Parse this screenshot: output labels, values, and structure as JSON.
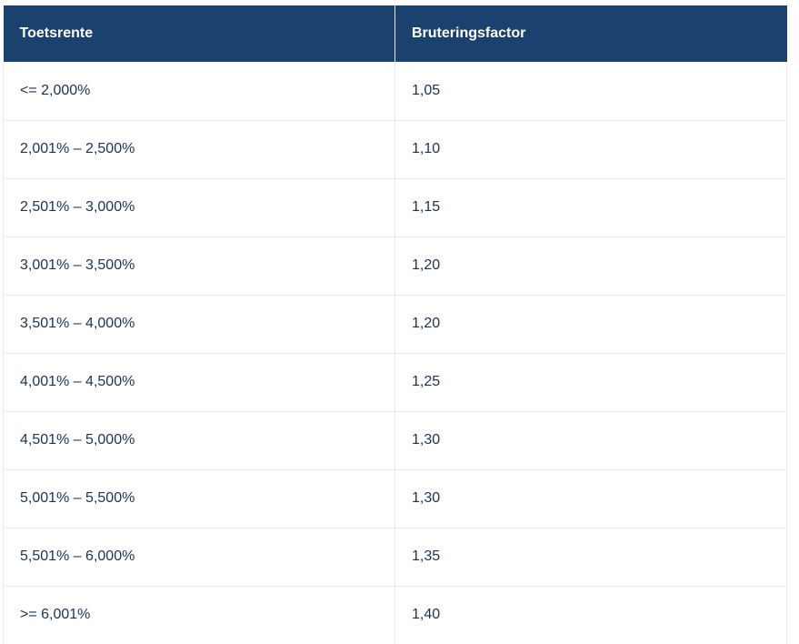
{
  "table": {
    "headers": [
      "Toetsrente",
      "Bruteringsfactor"
    ],
    "rows": [
      [
        "<= 2,000%",
        "1,05"
      ],
      [
        "2,001% – 2,500%",
        "1,10"
      ],
      [
        "2,501% – 3,000%",
        "1,15"
      ],
      [
        "3,001% – 3,500%",
        "1,20"
      ],
      [
        "3,501% – 4,000%",
        "1,20"
      ],
      [
        "4,001% – 4,500%",
        "1,25"
      ],
      [
        "4,501% – 5,000%",
        "1,30"
      ],
      [
        "5,001% – 5,500%",
        "1,30"
      ],
      [
        "5,501% – 6,000%",
        "1,35"
      ],
      [
        ">= 6,001%",
        "1,40"
      ]
    ]
  },
  "colors": {
    "header_bg": "#1b426f",
    "header_text": "#ffffff",
    "cell_text": "#1b3355",
    "border": "#e7e9ec"
  }
}
